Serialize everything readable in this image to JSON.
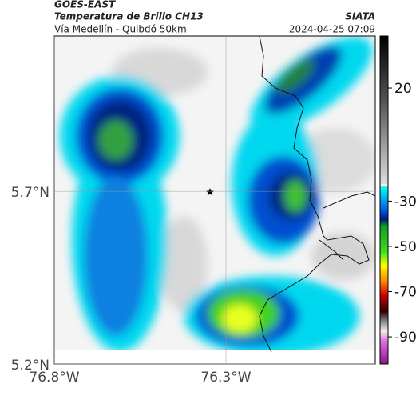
{
  "header": {
    "satellite": "GOES-EAST",
    "product": "Temperatura de Brillo CH13",
    "route": "Vía Medellín - Quibdó 50km",
    "source": "SIATA",
    "datetime": "2024-04-25 07:09"
  },
  "map": {
    "lat_lim": [
      5.2,
      6.15
    ],
    "lon_lim": [
      -76.8,
      -75.865
    ],
    "lat_ticks": [
      {
        "value": 5.7,
        "label": "5.7°N"
      },
      {
        "value": 5.2,
        "label": "5.2°N"
      }
    ],
    "lon_ticks": [
      {
        "value": -76.8,
        "label": "76.8°W"
      },
      {
        "value": -76.3,
        "label": "76.3°W"
      }
    ]
  },
  "colorbar": {
    "lim": [
      -102,
      43
    ],
    "ticks": [
      20,
      -30,
      -50,
      -70,
      -90
    ]
  }
}
